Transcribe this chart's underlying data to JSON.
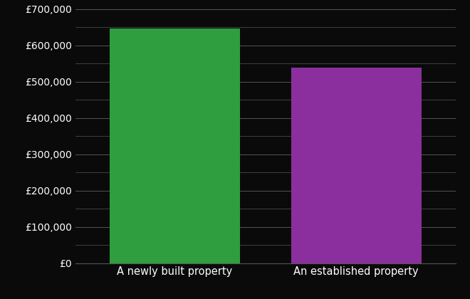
{
  "categories": [
    "A newly built property",
    "An established property"
  ],
  "values": [
    647000,
    538000
  ],
  "bar_colors": [
    "#2e9e3e",
    "#8b2f9e"
  ],
  "background_color": "#0a0a0a",
  "text_color": "#ffffff",
  "grid_color": "#555555",
  "ylim": [
    0,
    700000
  ],
  "yticks_major": [
    0,
    100000,
    200000,
    300000,
    400000,
    500000,
    600000,
    700000
  ],
  "yticks_minor": [
    50000,
    150000,
    250000,
    350000,
    450000,
    550000,
    650000
  ],
  "ytick_labels": [
    "£0",
    "£100,000",
    "£200,000",
    "£300,000",
    "£400,000",
    "£500,000",
    "£600,000",
    "£700,000"
  ],
  "tick_fontsize": 10,
  "xlabel_fontsize": 10.5
}
